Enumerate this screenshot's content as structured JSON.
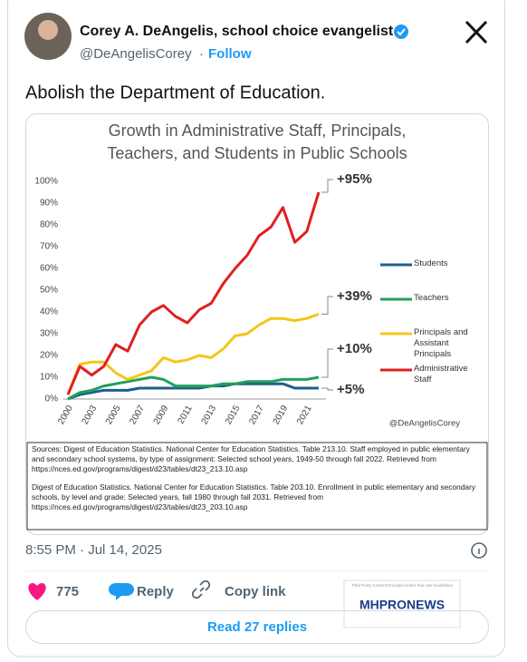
{
  "tweet": {
    "name": "Corey A. DeAngelis, school choice evangelist",
    "handle": "@DeAngelisCorey",
    "separator": "·",
    "follow": "Follow",
    "text": "Abolish the Department of Education.",
    "timestamp": "8:55 PM · Jul 14, 2025",
    "likes": "775",
    "reply": "Reply",
    "copy_link": "Copy link",
    "read_replies": "Read 27 replies",
    "watermark_top": "Third Party Content Provided Under Fair Use Guidelines",
    "watermark_logo": "MHPRONEWS"
  },
  "chart_data": {
    "type": "line",
    "title": "Growth in Administrative Staff, Principals,",
    "subtitle": "Teachers, and Students in Public Schools",
    "categories": [
      "2000",
      null,
      "2003",
      null,
      "2005",
      null,
      "2007",
      null,
      "2009",
      null,
      "2011",
      null,
      "2013",
      null,
      "2015",
      null,
      "2017",
      null,
      "2019",
      null,
      "2021",
      null
    ],
    "ylim": [
      0,
      100
    ],
    "yticks": [
      {
        "value": 0,
        "label": "0%"
      },
      {
        "value": 10,
        "label": "10%"
      },
      {
        "value": 20,
        "label": "20%"
      },
      {
        "value": 30,
        "label": "30%"
      },
      {
        "value": 40,
        "label": "40%"
      },
      {
        "value": 50,
        "label": "50%"
      },
      {
        "value": 60,
        "label": "60%"
      },
      {
        "value": 70,
        "label": "70%"
      },
      {
        "value": 80,
        "label": "80%"
      },
      {
        "value": 90,
        "label": "90%"
      },
      {
        "value": 100,
        "label": "100%"
      }
    ],
    "grid": false,
    "series": [
      {
        "name": "Students",
        "color": "#1f5f8b",
        "values": [
          0,
          2,
          3,
          4,
          4,
          4,
          5,
          5,
          5,
          5,
          5,
          5,
          6,
          6,
          7,
          7,
          7,
          7,
          7,
          5,
          5,
          5
        ]
      },
      {
        "name": "Teachers",
        "color": "#22a05a",
        "values": [
          0,
          3,
          4,
          6,
          7,
          8,
          9,
          10,
          9,
          6,
          6,
          6,
          6,
          7,
          7,
          8,
          8,
          8,
          9,
          9,
          9,
          10
        ]
      },
      {
        "name": "Principals and Assistant Principals",
        "color": "#f5c518",
        "values": [
          2,
          16,
          17,
          17,
          12,
          9,
          11,
          13,
          19,
          17,
          18,
          20,
          19,
          23,
          29,
          30,
          34,
          37,
          37,
          36,
          37,
          39
        ]
      },
      {
        "name": "Administrative Staff",
        "color": "#e0201e",
        "values": [
          2,
          15,
          11,
          15,
          25,
          22,
          34,
          40,
          43,
          38,
          35,
          41,
          44,
          53,
          60,
          66,
          75,
          79,
          88,
          72,
          77,
          95
        ]
      }
    ],
    "end_labels": [
      "+5%",
      "+10%",
      "+39%",
      "+95%"
    ],
    "credit": "@DeAngelisCorey",
    "sources": [
      "Sources: Digest of Education Statistics. National Center for Education Statistics. Table 213.10. Staff employed in public elementary and secondary school systems, by type of assignment: Selected school years, 1949-50 through fall 2022. Retrieved from https://nces.ed.gov/programs/digest/d23/tables/dt23_213.10.asp",
      "Digest of Education Statistics. National Center for Education Statistics. Table 203.10. Enrollment in public elementary and secondary schools, by level and grade: Selected years, fall 1980 through fall 2031. Retrieved from https://nces.ed.gov/programs/digest/d23/tables/dt23_203.10.asp"
    ]
  }
}
